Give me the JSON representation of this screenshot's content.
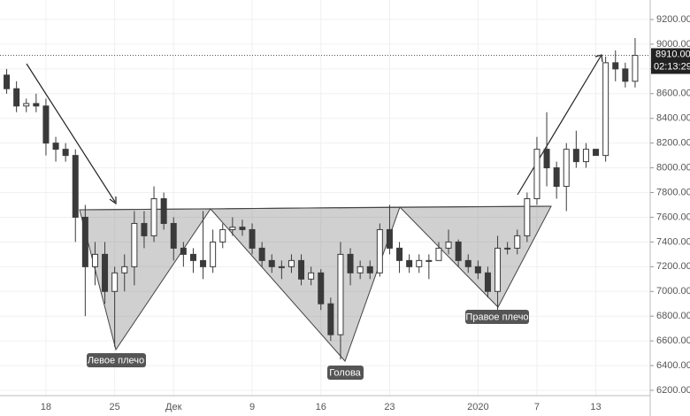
{
  "chart_data": {
    "type": "candlestick",
    "color": "#3a3a3a",
    "categories": [
      null,
      null,
      null,
      null,
      "18",
      null,
      null,
      null,
      null,
      null,
      null,
      "25",
      null,
      null,
      null,
      null,
      null,
      "Дек",
      null,
      null,
      null,
      null,
      null,
      null,
      null,
      "9",
      null,
      null,
      null,
      null,
      null,
      null,
      "16",
      null,
      null,
      null,
      null,
      null,
      null,
      "23",
      null,
      null,
      null,
      null,
      null,
      null,
      null,
      null,
      "2020",
      null,
      null,
      null,
      null,
      null,
      "7",
      null,
      null,
      null,
      null,
      null,
      "13",
      null,
      null,
      null,
      null
    ],
    "open": [
      8750,
      8640,
      8500,
      8520,
      8500,
      8200,
      8150,
      8100,
      7600,
      7200,
      7300,
      7000,
      7150,
      7200,
      7550,
      7450,
      7750,
      7550,
      7350,
      7300,
      7250,
      7200,
      7400,
      7500,
      7520,
      7500,
      7350,
      7250,
      7200,
      7200,
      7250,
      7100,
      7150,
      6900,
      6650,
      7300,
      7150,
      7200,
      7150,
      7500,
      7350,
      7250,
      7200,
      7250,
      7250,
      7350,
      7400,
      7250,
      7200,
      7150,
      7000,
      7350,
      7350,
      7450,
      7750,
      8150,
      8000,
      7850,
      8150,
      8050,
      8150,
      8100,
      8850,
      8800,
      8700
    ],
    "high": [
      8800,
      8700,
      8560,
      8600,
      8560,
      8250,
      8200,
      8150,
      7700,
      7400,
      7400,
      7200,
      7300,
      7650,
      7650,
      7850,
      7800,
      7600,
      7400,
      7350,
      7650,
      7500,
      7550,
      7600,
      7580,
      7550,
      7400,
      7300,
      7250,
      7300,
      7300,
      7200,
      7180,
      6950,
      7400,
      7350,
      7250,
      7250,
      7550,
      7700,
      7400,
      7300,
      7300,
      7300,
      7400,
      7500,
      7420,
      7300,
      7250,
      7200,
      7450,
      7400,
      7500,
      7800,
      8250,
      8450,
      8050,
      8200,
      8300,
      8200,
      8150,
      8900,
      8950,
      8850,
      9050
    ],
    "low": [
      8600,
      8450,
      8450,
      8450,
      8100,
      8050,
      8050,
      7400,
      6800,
      7050,
      6900,
      6550,
      7000,
      7050,
      7350,
      7400,
      7500,
      7250,
      7200,
      7150,
      7100,
      7150,
      7350,
      7450,
      7450,
      7300,
      7200,
      7150,
      7100,
      7150,
      7050,
      7050,
      6850,
      6600,
      6450,
      7050,
      7100,
      7100,
      7120,
      7300,
      7150,
      7150,
      7150,
      7100,
      7250,
      7300,
      7200,
      7150,
      7100,
      6950,
      6850,
      7300,
      7300,
      7400,
      7700,
      7850,
      7750,
      7650,
      8000,
      8000,
      8100,
      8050,
      8700,
      8650,
      8650
    ],
    "close": [
      8640,
      8500,
      8520,
      8500,
      8200,
      8150,
      8100,
      7600,
      7200,
      7300,
      7000,
      7150,
      7200,
      7550,
      7450,
      7750,
      7550,
      7350,
      7300,
      7250,
      7200,
      7400,
      7500,
      7520,
      7500,
      7350,
      7250,
      7200,
      7200,
      7250,
      7100,
      7150,
      6900,
      6650,
      7300,
      7150,
      7200,
      7150,
      7500,
      7350,
      7250,
      7200,
      7250,
      7250,
      7350,
      7400,
      7250,
      7200,
      7150,
      7000,
      7350,
      7350,
      7450,
      7750,
      8150,
      8000,
      7850,
      8150,
      8050,
      8150,
      8100,
      8850,
      8800,
      8700,
      8910
    ],
    "ylim": [
      6200,
      9200
    ],
    "yticks": [
      {
        "value": 6200,
        "label": "6200.00"
      },
      {
        "value": 6400,
        "label": "6400.00"
      },
      {
        "value": 6600,
        "label": "6600.00"
      },
      {
        "value": 6800,
        "label": "6800.00"
      },
      {
        "value": 7000,
        "label": "7000.00"
      },
      {
        "value": 7200,
        "label": "7200.00"
      },
      {
        "value": 7400,
        "label": "7400.00"
      },
      {
        "value": 7600,
        "label": "7600.00"
      },
      {
        "value": 7800,
        "label": "7800.00"
      },
      {
        "value": 8000,
        "label": "8000.00"
      },
      {
        "value": 8200,
        "label": "8200.00"
      },
      {
        "value": 8400,
        "label": "8400.00"
      },
      {
        "value": 8600,
        "label": "8600.00"
      },
      {
        "value": 8800,
        "label": "8800.00"
      },
      {
        "value": 9000,
        "label": "9000.00"
      },
      {
        "value": 9200,
        "label": "9200.00"
      }
    ],
    "grid": true,
    "last_price": {
      "value": 8910,
      "label": "8910.00"
    },
    "countdown": "02:13:29",
    "annotations": [
      "Левое плечо",
      "Голова",
      "Правое плечо"
    ]
  }
}
